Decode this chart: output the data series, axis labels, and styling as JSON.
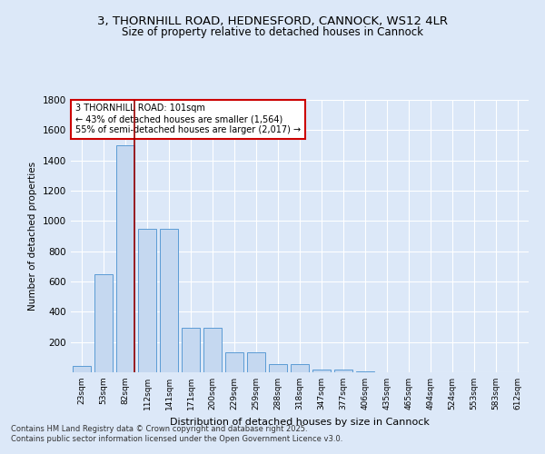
{
  "title_line1": "3, THORNHILL ROAD, HEDNESFORD, CANNOCK, WS12 4LR",
  "title_line2": "Size of property relative to detached houses in Cannock",
  "xlabel": "Distribution of detached houses by size in Cannock",
  "ylabel": "Number of detached properties",
  "categories": [
    "23sqm",
    "53sqm",
    "82sqm",
    "112sqm",
    "141sqm",
    "171sqm",
    "200sqm",
    "229sqm",
    "259sqm",
    "288sqm",
    "318sqm",
    "347sqm",
    "377sqm",
    "406sqm",
    "435sqm",
    "465sqm",
    "494sqm",
    "524sqm",
    "553sqm",
    "583sqm",
    "612sqm"
  ],
  "values": [
    40,
    650,
    1500,
    950,
    950,
    295,
    295,
    130,
    130,
    55,
    55,
    20,
    20,
    8,
    0,
    0,
    0,
    0,
    0,
    0,
    0
  ],
  "bar_color": "#c5d8f0",
  "bar_edge_color": "#5b9bd5",
  "background_color": "#dce8f8",
  "plot_bg_color": "#dce8f8",
  "grid_color": "#ffffff",
  "vline_color": "#990000",
  "vline_x_index": 2.4,
  "annotation_text": "3 THORNHILL ROAD: 101sqm\n← 43% of detached houses are smaller (1,564)\n55% of semi-detached houses are larger (2,017) →",
  "annotation_box_facecolor": "#ffffff",
  "annotation_box_edgecolor": "#cc0000",
  "ylim": [
    0,
    1800
  ],
  "yticks": [
    0,
    200,
    400,
    600,
    800,
    1000,
    1200,
    1400,
    1600,
    1800
  ],
  "footer_line1": "Contains HM Land Registry data © Crown copyright and database right 2025.",
  "footer_line2": "Contains public sector information licensed under the Open Government Licence v3.0."
}
